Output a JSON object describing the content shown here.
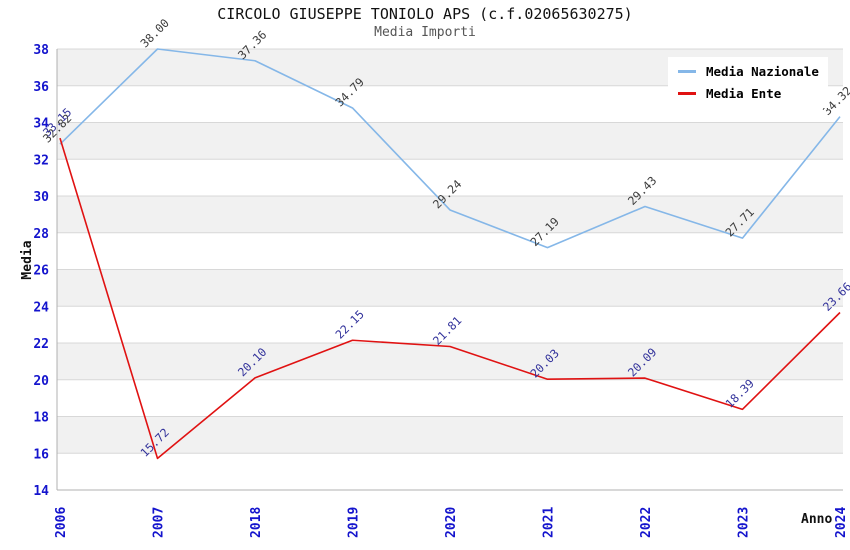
{
  "header": {
    "title": "CIRCOLO GIUSEPPE TONIOLO APS (c.f.02065630275)",
    "subtitle": "Media Importi"
  },
  "chart_data": {
    "type": "line",
    "title": "CIRCOLO GIUSEPPE TONIOLO APS (c.f.02065630275)",
    "subtitle": "Media Importi",
    "xlabel": "Anno",
    "ylabel": "Media",
    "categories": [
      "2006",
      "2007",
      "2018",
      "2019",
      "2020",
      "2021",
      "2022",
      "2023",
      "2024"
    ],
    "series": [
      {
        "name": "Media Nazionale",
        "color": "#85b7e8",
        "label_color": "#3b3b3b",
        "values": [
          32.82,
          38.0,
          37.36,
          34.79,
          29.24,
          27.19,
          29.43,
          27.71,
          34.32
        ]
      },
      {
        "name": "Media Ente",
        "color": "#e01212",
        "label_color": "#32329b",
        "values": [
          33.15,
          15.72,
          20.1,
          22.15,
          21.81,
          20.03,
          20.09,
          18.39,
          23.66
        ]
      }
    ],
    "ylim": [
      14,
      38
    ],
    "ytick_step": 2,
    "yticks": [
      14,
      16,
      18,
      20,
      22,
      24,
      26,
      28,
      30,
      32,
      34,
      36,
      38
    ],
    "grid": "horizontal-gridlines-with-alternating-bands",
    "legend_position": "top-right",
    "value_label_decimals": 2
  },
  "theme": {
    "tick_color": "#1414cd",
    "grid_color": "#d8d8d8",
    "band_color": "#f1f1f1",
    "axis_line_color": "#b0b0b0",
    "title_color": "#111111",
    "subtitle_color": "#555555",
    "background": "#ffffff"
  }
}
